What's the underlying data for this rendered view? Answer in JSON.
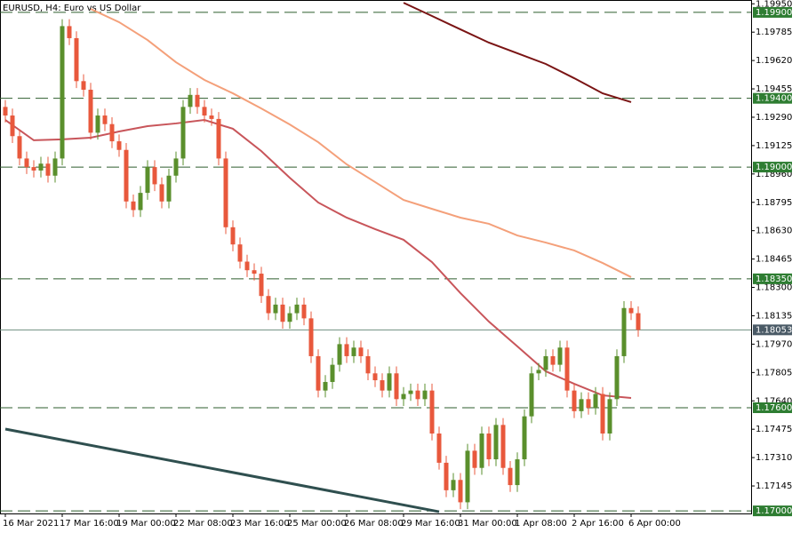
{
  "chart_data": {
    "type": "candlestick",
    "title": "EURUSD, H4:  Euro vs US Dollar",
    "up_color": "#5a8f2c",
    "down_color": "#e8583c",
    "level_color": "#2e5e2e",
    "level_label_color": "#2e7d32",
    "price_line_color": "#6f8f80",
    "price_label_color": "#4a5a66",
    "categories": [
      "16 Mar 2021",
      null,
      null,
      null,
      null,
      null,
      null,
      null,
      "17 Mar 16:00",
      null,
      null,
      null,
      null,
      null,
      null,
      null,
      "19 Mar 00:00",
      null,
      null,
      null,
      null,
      null,
      null,
      null,
      "22 Mar 08:00",
      null,
      null,
      null,
      null,
      null,
      null,
      null,
      "23 Mar 16:00",
      null,
      null,
      null,
      null,
      null,
      null,
      null,
      "25 Mar 00:00",
      null,
      null,
      null,
      null,
      null,
      null,
      null,
      "26 Mar 08:00",
      null,
      null,
      null,
      null,
      null,
      null,
      null,
      "29 Mar 16:00",
      null,
      null,
      null,
      null,
      null,
      null,
      null,
      "31 Mar 00:00",
      null,
      null,
      null,
      null,
      null,
      null,
      null,
      "1 Apr 08:00",
      null,
      null,
      null,
      null,
      null,
      null,
      null,
      "2 Apr 16:00",
      null,
      null,
      null,
      null,
      null,
      null,
      null,
      "6 Apr 00:00",
      null
    ],
    "candles": [
      [
        1.1935,
        1.1939,
        1.1926,
        1.193
      ],
      [
        1.193,
        1.1934,
        1.1914,
        1.1918
      ],
      [
        1.1918,
        1.1922,
        1.1901,
        1.1905
      ],
      [
        1.1905,
        1.1909,
        1.1896,
        1.19
      ],
      [
        1.19,
        1.1904,
        1.1894,
        1.1898
      ],
      [
        1.1898,
        1.1906,
        1.1894,
        1.1902
      ],
      [
        1.1902,
        1.1906,
        1.1891,
        1.1895
      ],
      [
        1.1895,
        1.1909,
        1.1891,
        1.1905
      ],
      [
        1.1905,
        1.1986,
        1.1901,
        1.1982
      ],
      [
        1.1982,
        1.1986,
        1.1971,
        1.1975
      ],
      [
        1.1975,
        1.1979,
        1.1946,
        1.195
      ],
      [
        1.195,
        1.1954,
        1.1941,
        1.1945
      ],
      [
        1.1945,
        1.1949,
        1.1916,
        1.192
      ],
      [
        1.192,
        1.1934,
        1.1916,
        1.193
      ],
      [
        1.193,
        1.1934,
        1.1921,
        1.1925
      ],
      [
        1.1925,
        1.1929,
        1.1911,
        1.1915
      ],
      [
        1.1915,
        1.1919,
        1.1906,
        1.191
      ],
      [
        1.191,
        1.1914,
        1.1876,
        1.188
      ],
      [
        1.188,
        1.1884,
        1.1871,
        1.1875
      ],
      [
        1.1875,
        1.1889,
        1.1871,
        1.1885
      ],
      [
        1.1885,
        1.1904,
        1.1881,
        1.19
      ],
      [
        1.19,
        1.1904,
        1.1886,
        1.189
      ],
      [
        1.189,
        1.1894,
        1.1876,
        1.188
      ],
      [
        1.188,
        1.1899,
        1.1876,
        1.1895
      ],
      [
        1.1895,
        1.1909,
        1.1891,
        1.1905
      ],
      [
        1.1905,
        1.1939,
        1.1901,
        1.1935
      ],
      [
        1.1935,
        1.1946,
        1.1931,
        1.1942
      ],
      [
        1.1942,
        1.1946,
        1.1931,
        1.1935
      ],
      [
        1.1935,
        1.1939,
        1.1926,
        1.193
      ],
      [
        1.193,
        1.1934,
        1.1924,
        1.1928
      ],
      [
        1.1928,
        1.1932,
        1.1901,
        1.1905
      ],
      [
        1.1905,
        1.1909,
        1.1861,
        1.1865
      ],
      [
        1.1865,
        1.1869,
        1.1851,
        1.1855
      ],
      [
        1.1855,
        1.1859,
        1.1841,
        1.1845
      ],
      [
        1.1845,
        1.1849,
        1.1836,
        1.184
      ],
      [
        1.184,
        1.1844,
        1.1834,
        1.1838
      ],
      [
        1.1838,
        1.1842,
        1.1821,
        1.1825
      ],
      [
        1.1825,
        1.1829,
        1.1811,
        1.1815
      ],
      [
        1.1815,
        1.1824,
        1.1811,
        1.182
      ],
      [
        1.182,
        1.1824,
        1.1806,
        1.181
      ],
      [
        1.181,
        1.1819,
        1.1806,
        1.1815
      ],
      [
        1.1815,
        1.1824,
        1.1811,
        1.182
      ],
      [
        1.182,
        1.1824,
        1.1808,
        1.1812
      ],
      [
        1.1812,
        1.1816,
        1.1786,
        1.179
      ],
      [
        1.179,
        1.1794,
        1.1766,
        1.177
      ],
      [
        1.177,
        1.1779,
        1.1766,
        1.1775
      ],
      [
        1.1775,
        1.1789,
        1.1771,
        1.1785
      ],
      [
        1.1785,
        1.1801,
        1.1781,
        1.1797
      ],
      [
        1.1797,
        1.1801,
        1.1786,
        1.179
      ],
      [
        1.179,
        1.1799,
        1.1786,
        1.1795
      ],
      [
        1.1795,
        1.1799,
        1.1786,
        1.179
      ],
      [
        1.179,
        1.1794,
        1.1776,
        1.178
      ],
      [
        1.178,
        1.1784,
        1.1772,
        1.1776
      ],
      [
        1.1776,
        1.178,
        1.1766,
        1.177
      ],
      [
        1.177,
        1.1784,
        1.1766,
        1.178
      ],
      [
        1.178,
        1.1784,
        1.1761,
        1.1765
      ],
      [
        1.1765,
        1.1772,
        1.1761,
        1.1768
      ],
      [
        1.1768,
        1.1774,
        1.1764,
        1.177
      ],
      [
        1.177,
        1.1774,
        1.1761,
        1.1765
      ],
      [
        1.1765,
        1.1774,
        1.1761,
        1.177
      ],
      [
        1.177,
        1.1774,
        1.1741,
        1.1745
      ],
      [
        1.1745,
        1.1749,
        1.1724,
        1.1728
      ],
      [
        1.1728,
        1.1732,
        1.1708,
        1.1712
      ],
      [
        1.1712,
        1.1722,
        1.1708,
        1.1718
      ],
      [
        1.1718,
        1.1722,
        1.1701,
        1.1705
      ],
      [
        1.1705,
        1.1739,
        1.1701,
        1.1735
      ],
      [
        1.1735,
        1.1739,
        1.1721,
        1.1725
      ],
      [
        1.1725,
        1.1749,
        1.1721,
        1.1745
      ],
      [
        1.1745,
        1.1749,
        1.1726,
        1.173
      ],
      [
        1.173,
        1.1754,
        1.1726,
        1.175
      ],
      [
        1.175,
        1.1754,
        1.1721,
        1.1725
      ],
      [
        1.1725,
        1.1729,
        1.1711,
        1.1715
      ],
      [
        1.1715,
        1.1734,
        1.1711,
        1.173
      ],
      [
        1.173,
        1.1759,
        1.1726,
        1.1755
      ],
      [
        1.1755,
        1.1784,
        1.1751,
        1.178
      ],
      [
        1.178,
        1.1786,
        1.1776,
        1.1782
      ],
      [
        1.1782,
        1.1794,
        1.1778,
        1.179
      ],
      [
        1.179,
        1.1794,
        1.1781,
        1.1785
      ],
      [
        1.1785,
        1.1799,
        1.1781,
        1.1795
      ],
      [
        1.1795,
        1.1799,
        1.1766,
        1.177
      ],
      [
        1.177,
        1.1774,
        1.1754,
        1.1758
      ],
      [
        1.1758,
        1.1769,
        1.1754,
        1.1765
      ],
      [
        1.1765,
        1.1769,
        1.1756,
        1.176
      ],
      [
        1.176,
        1.1772,
        1.1756,
        1.1768
      ],
      [
        1.1768,
        1.1772,
        1.1741,
        1.1745
      ],
      [
        1.1745,
        1.1769,
        1.1741,
        1.1765
      ],
      [
        1.1765,
        1.1794,
        1.1761,
        1.179
      ],
      [
        1.179,
        1.1822,
        1.1786,
        1.1818
      ],
      [
        1.1818,
        1.1822,
        1.1811,
        1.1815
      ],
      [
        1.1815,
        1.1819,
        1.18013,
        1.18053
      ]
    ],
    "lines": [
      {
        "color": "#c8555a",
        "x": [
          0,
          4,
          8,
          12,
          16,
          20,
          24,
          28,
          32,
          36,
          40,
          44,
          48,
          52,
          56,
          60,
          64,
          68,
          72,
          76,
          80,
          84,
          88
        ],
        "values": [
          1.19274,
          1.19156,
          1.19161,
          1.19171,
          1.19207,
          1.19238,
          1.19254,
          1.19274,
          1.19223,
          1.19093,
          1.18938,
          1.18794,
          1.18706,
          1.18639,
          1.18577,
          1.18447,
          1.18267,
          1.18101,
          1.17957,
          1.17812,
          1.17739,
          1.17672,
          1.17657
        ]
      },
      {
        "color": "#f4a07a",
        "x": [
          12,
          16,
          20,
          24,
          28,
          32,
          36,
          40,
          44,
          48,
          52,
          56,
          60,
          64,
          68,
          72,
          76,
          80,
          84,
          88
        ],
        "values": [
          1.1992,
          1.19843,
          1.19739,
          1.1961,
          1.19507,
          1.19429,
          1.19341,
          1.19248,
          1.19145,
          1.19016,
          1.18913,
          1.18809,
          1.18757,
          1.18706,
          1.1867,
          1.18602,
          1.18561,
          1.18515,
          1.18442,
          1.1836
        ]
      },
      {
        "color": "#7a1414",
        "x": [
          56,
          60,
          64,
          68,
          72,
          76,
          80,
          84,
          88
        ],
        "values": [
          1.19956,
          1.19879,
          1.19801,
          1.19724,
          1.19662,
          1.196,
          1.19517,
          1.19429,
          1.19378
        ]
      }
    ],
    "trendlines": [
      {
        "color": "#2f4f4f",
        "x": [
          0,
          61
        ],
        "values": [
          1.17476,
          1.16995
        ]
      }
    ],
    "levels": [
      {
        "value": 1.199,
        "label": "1.19900"
      },
      {
        "value": 1.194,
        "label": "1.19400"
      },
      {
        "value": 1.19,
        "label": "1.19000"
      },
      {
        "value": 1.1835,
        "label": "1.18350"
      },
      {
        "value": 1.176,
        "label": "1.17600"
      },
      {
        "value": 1.17,
        "label": "1.17000"
      }
    ],
    "current_price": {
      "value": 1.18053,
      "label": "1.18053"
    },
    "ylim": [
      1.16985,
      1.19972
    ],
    "yticks": [
      {
        "value": 1.1995,
        "label": "1.19950"
      },
      {
        "value": 1.19785,
        "label": "1.19785"
      },
      {
        "value": 1.1962,
        "label": "1.19620"
      },
      {
        "value": 1.19455,
        "label": "1.19455"
      },
      {
        "value": 1.1929,
        "label": "1.19290"
      },
      {
        "value": 1.19125,
        "label": "1.19125"
      },
      {
        "value": 1.1896,
        "label": "1.18960"
      },
      {
        "value": 1.18795,
        "label": "1.18795"
      },
      {
        "value": 1.1863,
        "label": "1.18630"
      },
      {
        "value": 1.18465,
        "label": "1.18465"
      },
      {
        "value": 1.183,
        "label": "1.18300"
      },
      {
        "value": 1.18135,
        "label": "1.18135"
      },
      {
        "value": 1.1797,
        "label": "1.17970"
      },
      {
        "value": 1.17805,
        "label": "1.17805"
      },
      {
        "value": 1.1764,
        "label": "1.17640"
      },
      {
        "value": 1.17475,
        "label": "1.17475"
      },
      {
        "value": 1.1731,
        "label": "1.17310"
      },
      {
        "value": 1.17145,
        "label": "1.17145"
      }
    ]
  }
}
